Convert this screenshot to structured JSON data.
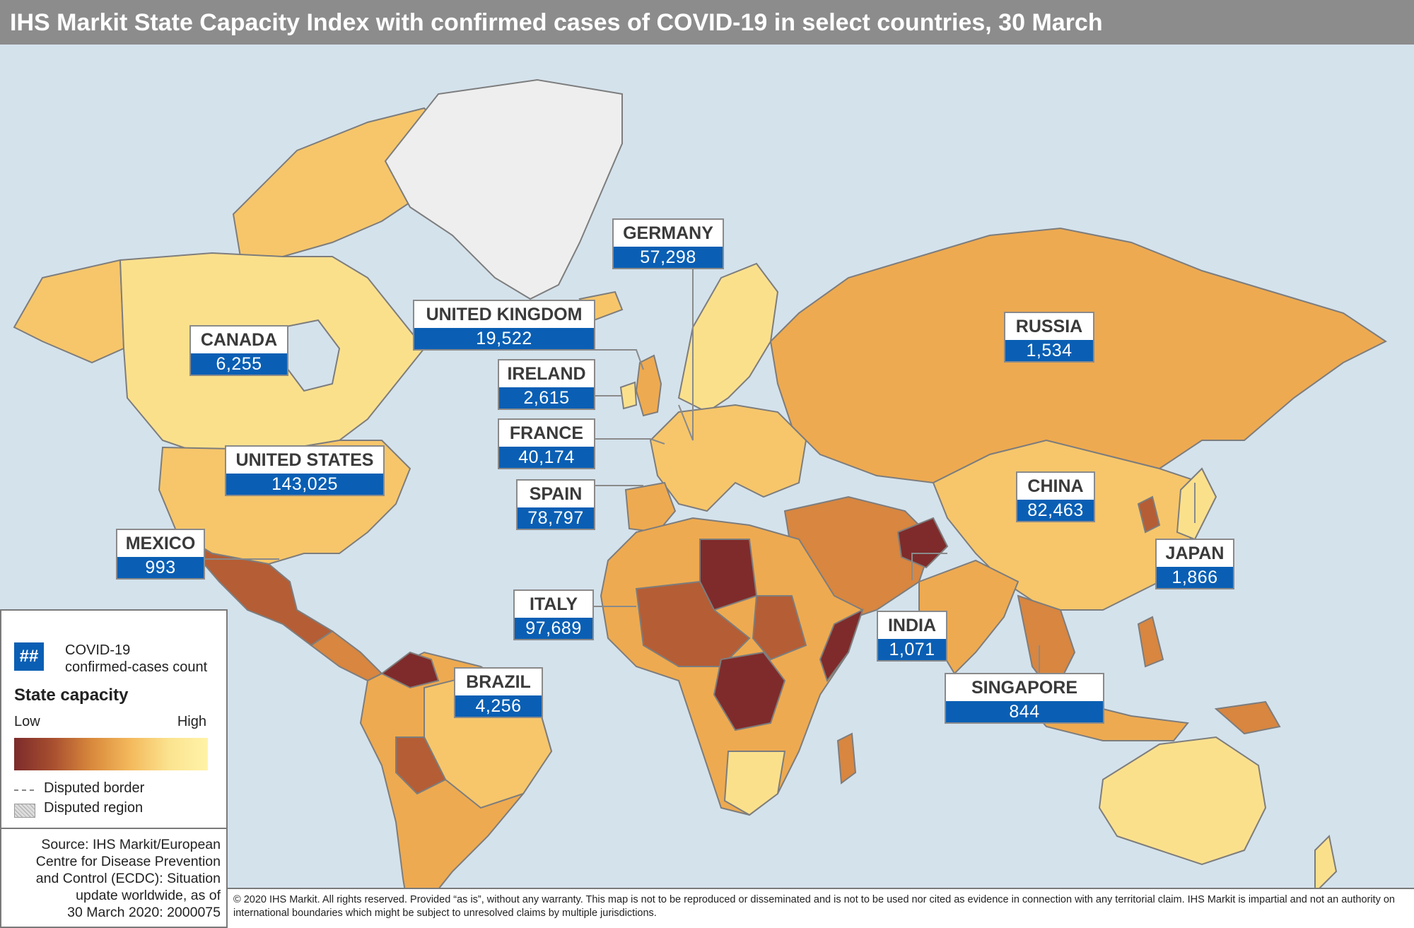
{
  "title": "IHS Markit State Capacity Index with confirmed cases of COVID-19 in select countries, 30 March",
  "colors": {
    "ocean": "#d4e2ec",
    "land_high": "#fbe08c",
    "land_mid_high": "#f7c66a",
    "land_mid": "#eeaa50",
    "land_mid_low": "#d88640",
    "land_low": "#b55d35",
    "land_lowest": "#7f2b2b",
    "greenland": "#eeeeee",
    "count_box": "#0a5fb4",
    "border": "#8a8a8a"
  },
  "callouts": [
    {
      "country": "GERMANY",
      "count": "57,298"
    },
    {
      "country": "UNITED KINGDOM",
      "count": "19,522"
    },
    {
      "country": "CANADA",
      "count": "6,255"
    },
    {
      "country": "IRELAND",
      "count": "2,615"
    },
    {
      "country": "RUSSIA",
      "count": "1,534"
    },
    {
      "country": "FRANCE",
      "count": "40,174"
    },
    {
      "country": "UNITED STATES",
      "count": "143,025"
    },
    {
      "country": "SPAIN",
      "count": "78,797"
    },
    {
      "country": "CHINA",
      "count": "82,463"
    },
    {
      "country": "MEXICO",
      "count": "993"
    },
    {
      "country": "JAPAN",
      "count": "1,866"
    },
    {
      "country": "ITALY",
      "count": "97,689"
    },
    {
      "country": "INDIA",
      "count": "1,071"
    },
    {
      "country": "BRAZIL",
      "count": "4,256"
    },
    {
      "country": "SINGAPORE",
      "count": "844"
    }
  ],
  "legend": {
    "swatch_symbol": "##",
    "cases_line1": "COVID-19",
    "cases_line2": "confirmed-cases count",
    "scale_title": "State capacity",
    "low": "Low",
    "high": "High",
    "disputed_border": "Disputed border",
    "disputed_region": "Disputed region"
  },
  "source": {
    "lines": [
      "Source: IHS Markit/European",
      "Centre for Disease Prevention",
      "and Control (ECDC): Situation",
      "update worldwide, as of",
      "30 March 2020: 2000075"
    ]
  },
  "copyright": "© 2020 IHS Markit. All rights reserved. Provided “as is”, without any warranty. This map is not to be reproduced or disseminated and is not to be used nor cited as evidence in connection with any territorial claim. IHS Markit is impartial and not an authority on international boundaries which might be subject to unresolved claims by multiple jurisdictions."
}
